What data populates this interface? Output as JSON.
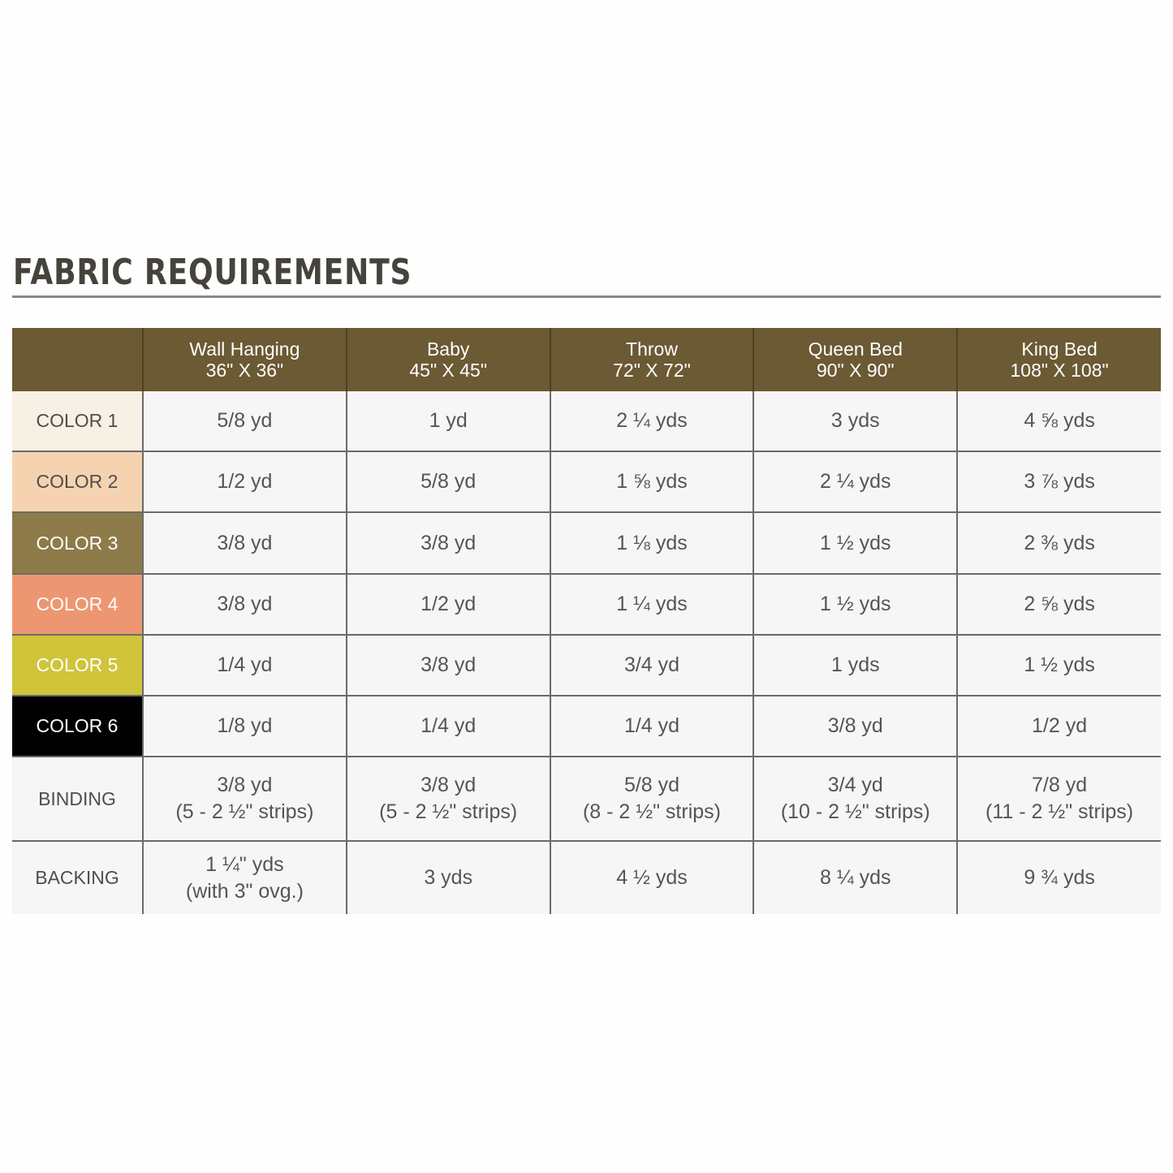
{
  "title": "FABRIC REQUIREMENTS",
  "columns": [
    {
      "name": "Wall Hanging",
      "size": "36\" X 36\""
    },
    {
      "name": "Baby",
      "size": "45\" X 45\""
    },
    {
      "name": "Throw",
      "size": "72\" X 72\""
    },
    {
      "name": "Queen Bed",
      "size": "90\" X 90\""
    },
    {
      "name": "King Bed",
      "size": "108\" X 108\""
    }
  ],
  "rows": [
    {
      "label": "COLOR 1",
      "color": "#f7f0e4",
      "text_color": "#4e4e4e",
      "cells": [
        [
          "5/8 yd"
        ],
        [
          "1 yd"
        ],
        [
          "2 ¼ yds"
        ],
        [
          "3 yds"
        ],
        [
          "4 ⅝ yds"
        ]
      ]
    },
    {
      "label": "COLOR 2",
      "color": "#f5d3b0",
      "text_color": "#4e4e4e",
      "cells": [
        [
          "1/2 yd"
        ],
        [
          "5/8 yd"
        ],
        [
          "1 ⅝ yds"
        ],
        [
          "2 ¼ yds"
        ],
        [
          "3 ⅞ yds"
        ]
      ]
    },
    {
      "label": "COLOR 3",
      "color": "#8e7b4a",
      "text_color": "#ffffff",
      "cells": [
        [
          "3/8 yd"
        ],
        [
          "3/8 yd"
        ],
        [
          "1 ⅛ yds"
        ],
        [
          "1 ½ yds"
        ],
        [
          "2 ⅜ yds"
        ]
      ]
    },
    {
      "label": "COLOR 4",
      "color": "#ec9772",
      "text_color": "#ffffff",
      "cells": [
        [
          "3/8 yd"
        ],
        [
          "1/2 yd"
        ],
        [
          "1 ¼ yds"
        ],
        [
          "1 ½ yds"
        ],
        [
          "2 ⅝ yds"
        ]
      ]
    },
    {
      "label": "COLOR 5",
      "color": "#cfc43a",
      "text_color": "#ffffff",
      "cells": [
        [
          "1/4 yd"
        ],
        [
          "3/8 yd"
        ],
        [
          "3/4 yd"
        ],
        [
          "1 yds"
        ],
        [
          "1 ½ yds"
        ]
      ]
    },
    {
      "label": "COLOR 6",
      "color": "#000000",
      "text_color": "#ffffff",
      "cells": [
        [
          "1/8 yd"
        ],
        [
          "1/4 yd"
        ],
        [
          "1/4 yd"
        ],
        [
          "3/8 yd"
        ],
        [
          "1/2 yd"
        ]
      ]
    },
    {
      "label": "BINDING",
      "color": "#f7f6f6",
      "text_color": "#4e4e4e",
      "cells": [
        [
          "3/8 yd",
          "(5 - 2 ½\" strips)"
        ],
        [
          "3/8 yd",
          "(5 - 2 ½\" strips)"
        ],
        [
          "5/8 yd",
          "(8 - 2 ½\" strips)"
        ],
        [
          "3/4 yd",
          "(10 - 2 ½\" strips)"
        ],
        [
          "7/8 yd",
          "(11 - 2 ½\" strips)"
        ]
      ]
    },
    {
      "label": "BACKING",
      "color": "#f7f6f6",
      "text_color": "#4e4e4e",
      "cells": [
        [
          "1 ¼\" yds",
          "(with 3\" ovg.)"
        ],
        [
          "3 yds"
        ],
        [
          "4 ½ yds"
        ],
        [
          "8 ¼ yds"
        ],
        [
          "9 ¾ yds"
        ]
      ]
    }
  ],
  "header_color": "#6b5a33"
}
